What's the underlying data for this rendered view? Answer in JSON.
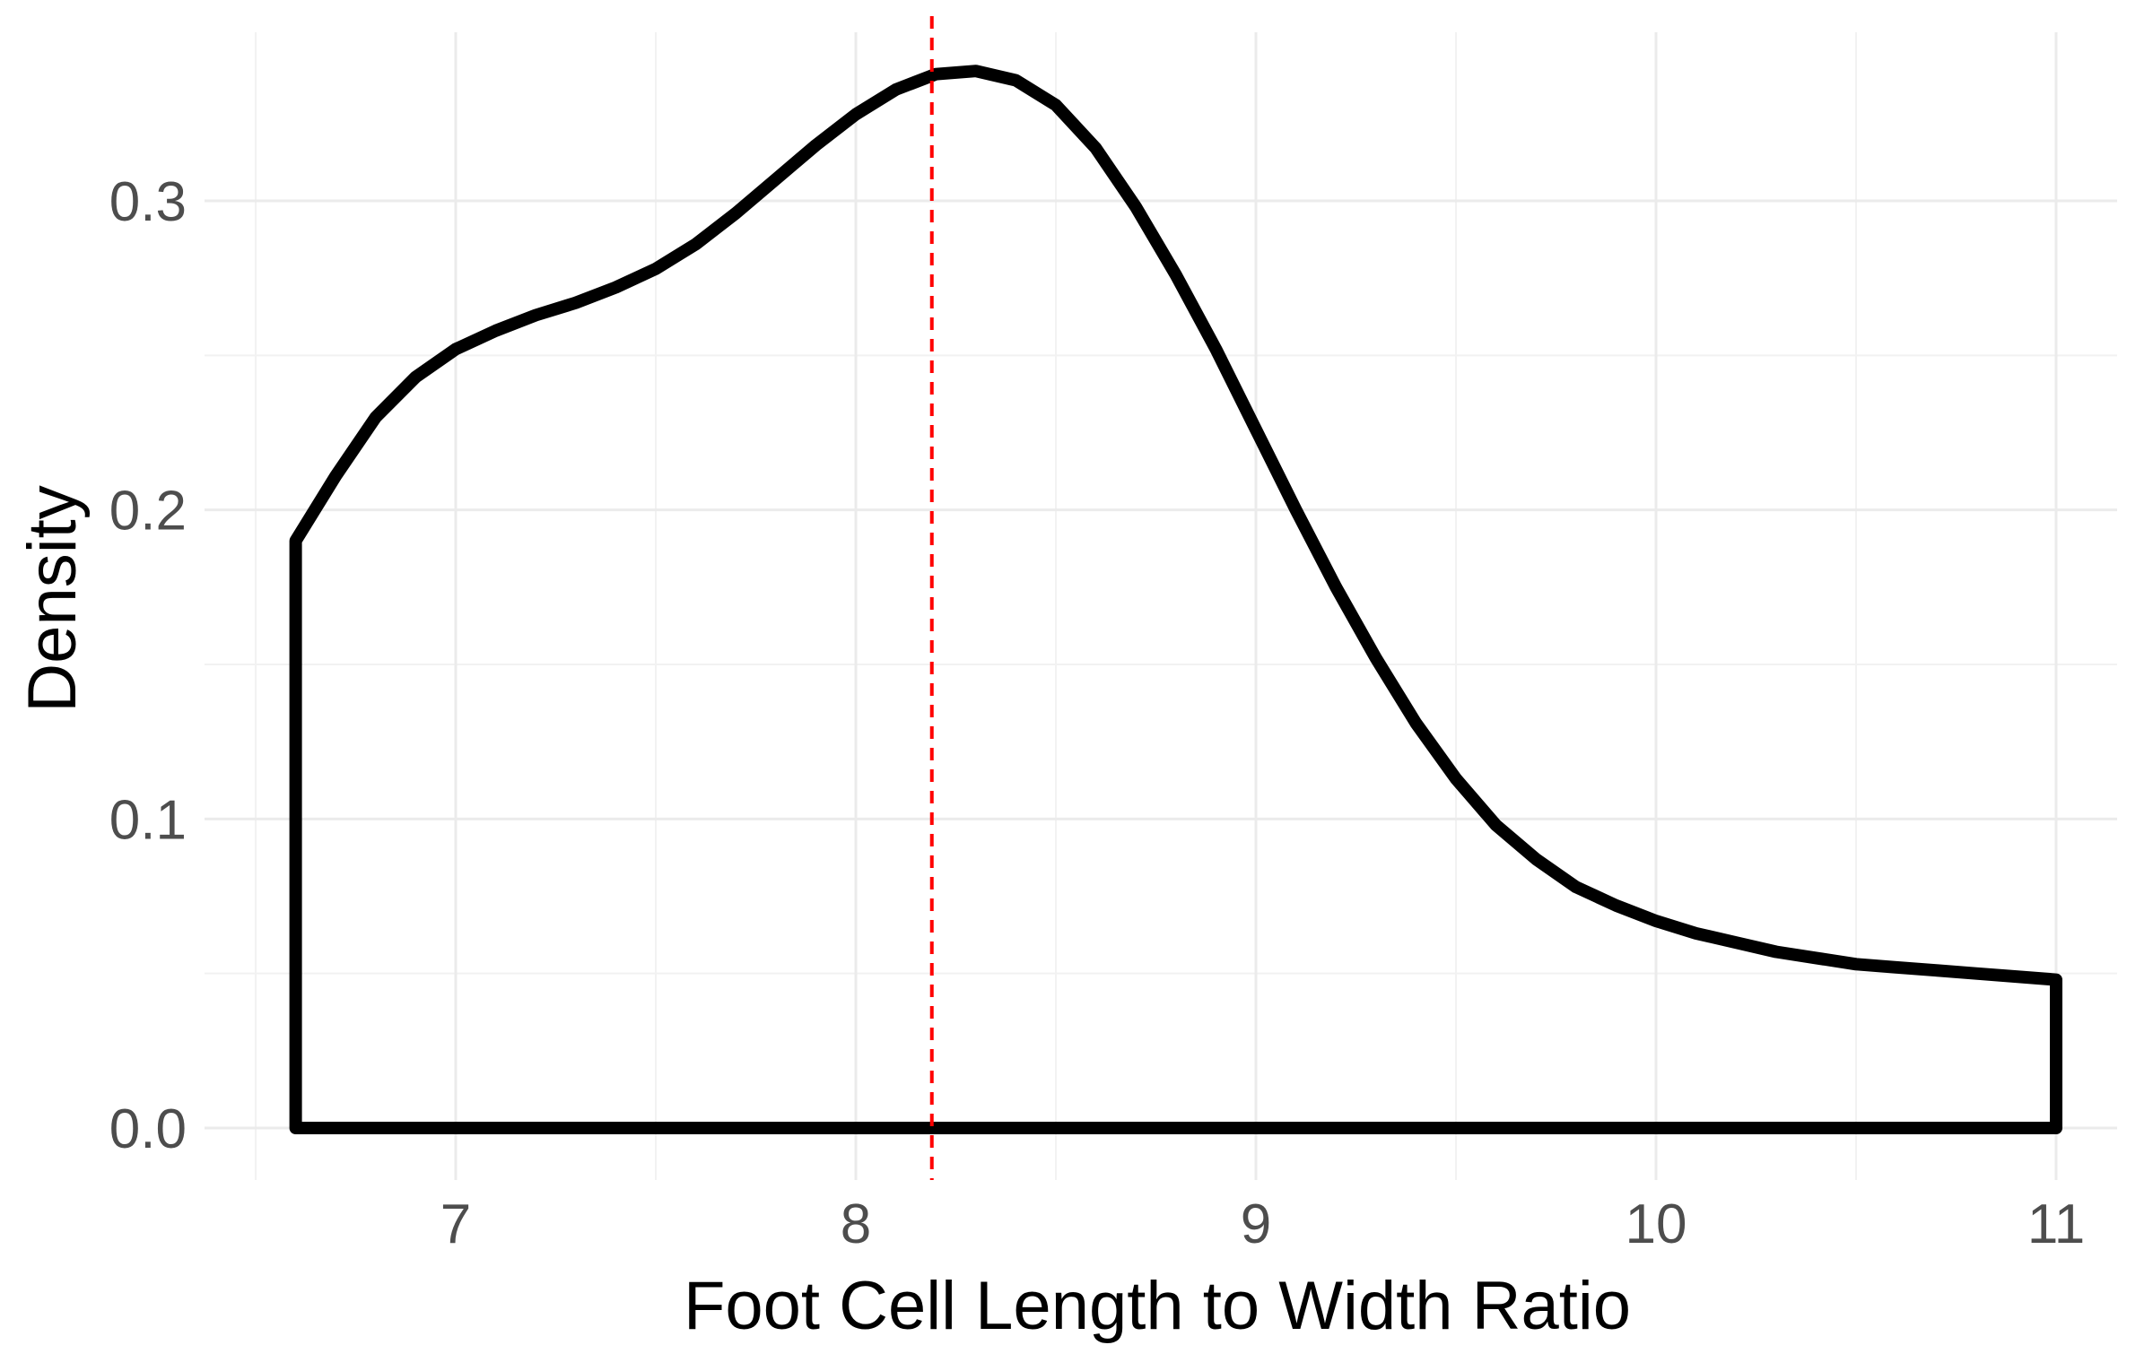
{
  "chart_data": {
    "type": "area",
    "title": "",
    "xlabel": "Foot Cell Length to Width Ratio",
    "ylabel": "Density",
    "xlim": [
      6.45,
      11.1
    ],
    "ylim": [
      -0.016,
      0.353
    ],
    "x_ticks": [
      7,
      8,
      9,
      10,
      11
    ],
    "x_tick_labels": [
      "7",
      "8",
      "9",
      "10",
      "11"
    ],
    "x_minor_ticks": [
      6.5,
      7.5,
      8.5,
      9.5,
      10.5
    ],
    "y_ticks": [
      0.0,
      0.1,
      0.2,
      0.3
    ],
    "y_tick_labels": [
      "0.0",
      "0.1",
      "0.2",
      "0.3"
    ],
    "y_minor_ticks": [
      0.05,
      0.15,
      0.25
    ],
    "grid": true,
    "legend": "none",
    "series": [
      {
        "kind": "density",
        "color": "#000000",
        "x": [
          6.6,
          6.7,
          6.8,
          6.9,
          7.0,
          7.1,
          7.2,
          7.3,
          7.4,
          7.5,
          7.6,
          7.7,
          7.8,
          7.9,
          8.0,
          8.1,
          8.2,
          8.3,
          8.4,
          8.5,
          8.6,
          8.7,
          8.8,
          8.9,
          9.0,
          9.1,
          9.2,
          9.3,
          9.4,
          9.5,
          9.6,
          9.7,
          9.8,
          9.9,
          10.0,
          10.1,
          10.2,
          10.3,
          10.4,
          10.5,
          10.6,
          10.7,
          10.8,
          10.9,
          11.0
        ],
        "y": [
          0.19,
          0.211,
          0.23,
          0.243,
          0.252,
          0.258,
          0.263,
          0.267,
          0.272,
          0.278,
          0.286,
          0.296,
          0.307,
          0.318,
          0.328,
          0.336,
          0.341,
          0.342,
          0.339,
          0.331,
          0.317,
          0.298,
          0.276,
          0.252,
          0.226,
          0.2,
          0.175,
          0.152,
          0.131,
          0.113,
          0.098,
          0.087,
          0.078,
          0.072,
          0.067,
          0.063,
          0.06,
          0.057,
          0.055,
          0.053,
          0.052,
          0.051,
          0.05,
          0.049,
          0.048
        ]
      }
    ],
    "vline": {
      "x": 8.19,
      "color": "#ff0000",
      "style": "dashed"
    }
  }
}
